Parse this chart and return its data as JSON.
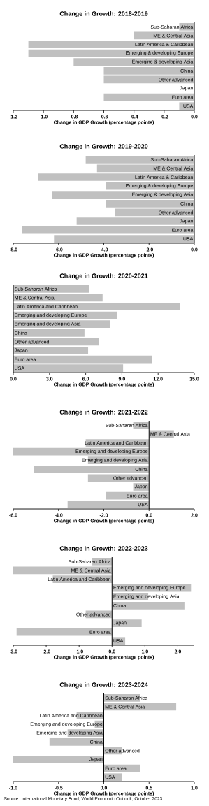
{
  "chart_data": [
    {
      "type": "bar",
      "orientation": "horizontal",
      "title": "Change in Growth: 2018-2019",
      "xlabel": "Change in GDP Growth (percentage points)",
      "color": "#c0c0c0",
      "categories": [
        "Sub-Saharan Africa",
        "ME & Central Asia",
        "Latin America & Caribbean",
        "Emerging & developing Europe",
        "Emerging & developing Asia",
        "China",
        "Other advanced",
        "Japan",
        "Euro area",
        "USA"
      ],
      "values": [
        -0.1,
        -0.4,
        -1.1,
        -1.1,
        -0.8,
        -0.6,
        -0.6,
        0,
        -0.6,
        -0.1
      ],
      "xlim": [
        -1.2,
        0
      ],
      "xticks": [
        {
          "value": -1.2,
          "label": "-1.2"
        },
        {
          "value": -1,
          "label": "-1.0"
        },
        {
          "value": -0.8,
          "label": "-0.8"
        },
        {
          "value": -0.6,
          "label": "-0.6"
        },
        {
          "value": -0.4,
          "label": "-0.4"
        },
        {
          "value": -0.2,
          "label": "-0.2"
        },
        {
          "value": 0,
          "label": "0.0"
        }
      ]
    },
    {
      "type": "bar",
      "orientation": "horizontal",
      "title": "Change in Growth: 2019-2020",
      "xlabel": "Change in GDP Growth (percentage points)",
      "color": "#c0c0c0",
      "categories": [
        "Sub-Saharan Africa",
        "ME & Central Asia",
        "Latin America & Caribbean",
        "Emerging & developing Europe",
        "Emerging & developing Asia",
        "China",
        "Other advanced",
        "Japan",
        "Euro area",
        "USA"
      ],
      "values": [
        -4.8,
        -4.3,
        -6.9,
        -3.9,
        -6.3,
        -3.9,
        -3.5,
        -5.2,
        -7.6,
        -6.2
      ],
      "xlim": [
        -8,
        0
      ],
      "xticks": [
        {
          "value": -8,
          "label": "-8.0"
        },
        {
          "value": -6,
          "label": "-6.0"
        },
        {
          "value": -4,
          "label": "-4.0"
        },
        {
          "value": -2,
          "label": "-2.0"
        },
        {
          "value": 0,
          "label": "0.0"
        }
      ]
    },
    {
      "type": "bar",
      "orientation": "horizontal",
      "title": "Change in Growth: 2020-2021",
      "xlabel": "Change in GDP Growth (percentage points)",
      "color": "#c0c0c0",
      "categories": [
        "Sub-Saharan Africa",
        "ME & Central Asia",
        "Latin America and Caribbean",
        "Emerging and developing Europe",
        "Emerging and developing Asia",
        "China",
        "Other advanced",
        "Japan",
        "Euro area",
        "USA"
      ],
      "values": [
        6.3,
        7.4,
        13.8,
        8.6,
        8.0,
        5.9,
        7.1,
        6.2,
        11.5,
        9.1
      ],
      "xlim": [
        0,
        15
      ],
      "xticks": [
        {
          "value": 0,
          "label": "0.0"
        },
        {
          "value": 3,
          "label": "3.0"
        },
        {
          "value": 6,
          "label": "6.0"
        },
        {
          "value": 9,
          "label": "9.0"
        },
        {
          "value": 12,
          "label": "12.0"
        },
        {
          "value": 15,
          "label": "15.0"
        }
      ]
    },
    {
      "type": "bar",
      "orientation": "horizontal",
      "title": "Change in Growth: 2021-2022",
      "xlabel": "Change in GDP Growth (percentage points)",
      "color": "#c0c0c0",
      "categories": [
        "Sub-Saharan Africa",
        "ME & Central Asia",
        "Latin America and Caribbean",
        "Emerging and developing Europe",
        "Emerging and developing Asia",
        "China",
        "Other advanced",
        "Japan",
        "Euro area",
        "USA"
      ],
      "values": [
        -0.7,
        1.1,
        -2.8,
        -6.0,
        -2.7,
        -5.1,
        -2.7,
        -0.7,
        -1.9,
        -3.6
      ],
      "xlim": [
        -6,
        2
      ],
      "xticks": [
        {
          "value": -6,
          "label": "-6.0"
        },
        {
          "value": -4,
          "label": "-4.0"
        },
        {
          "value": -2,
          "label": "-2.0"
        },
        {
          "value": 0,
          "label": "0.0"
        },
        {
          "value": 2,
          "label": "2.0"
        }
      ]
    },
    {
      "type": "bar",
      "orientation": "horizontal",
      "title": "Change in Growth: 2022-2023",
      "xlabel": "Change in GDP Growth (percentage points)",
      "color": "#c0c0c0",
      "categories": [
        "Sub-Saharan Africa",
        "ME & Central Asia",
        "Latin America and Caribbean",
        "Emerging and developing Europe",
        "Emerging and developing Asia",
        "China",
        "Other advanced",
        "Japan",
        "Euro area",
        "USA"
      ],
      "values": [
        -0.6,
        -3.0,
        -1.8,
        2.4,
        1.1,
        2.2,
        -0.8,
        0.9,
        -2.9,
        0.4
      ],
      "xlim": [
        -3,
        2.5
      ],
      "xticks": [
        {
          "value": -3,
          "label": "-3.0"
        },
        {
          "value": -2,
          "label": "-2.0"
        },
        {
          "value": -1,
          "label": "-1.0"
        },
        {
          "value": 0,
          "label": "0.0"
        },
        {
          "value": 1,
          "label": "1.0"
        },
        {
          "value": 2,
          "label": "2.0"
        }
      ]
    },
    {
      "type": "bar",
      "orientation": "horizontal",
      "title": "Change in Growth: 2023-2024",
      "xlabel": "Change in GDP Growth (percentage points)",
      "color": "#c0c0c0",
      "categories": [
        "Sub-Saharan Africa",
        "ME & Central Asia",
        "Latin America and Caribbean",
        "Emerging and developing Europe",
        "Emerging and developing Asia",
        "China",
        "Other advanced",
        "Japan",
        "Euro area",
        "USA"
      ],
      "values": [
        0.4,
        0.8,
        -0.3,
        -0.1,
        -0.4,
        -0.6,
        0.2,
        -1.0,
        0.4,
        0.2
      ],
      "xlim": [
        -1,
        1
      ],
      "xticks": [
        {
          "value": -1,
          "label": "-1.0"
        },
        {
          "value": -0.5,
          "label": "-0.5"
        },
        {
          "value": 0,
          "label": "0.0"
        },
        {
          "value": 0.5,
          "label": "0.5"
        },
        {
          "value": 1,
          "label": "1.0"
        }
      ],
      "annotations": [
        "Source: International Monetary Fund, World Economic Outlook, October 2023"
      ]
    }
  ]
}
